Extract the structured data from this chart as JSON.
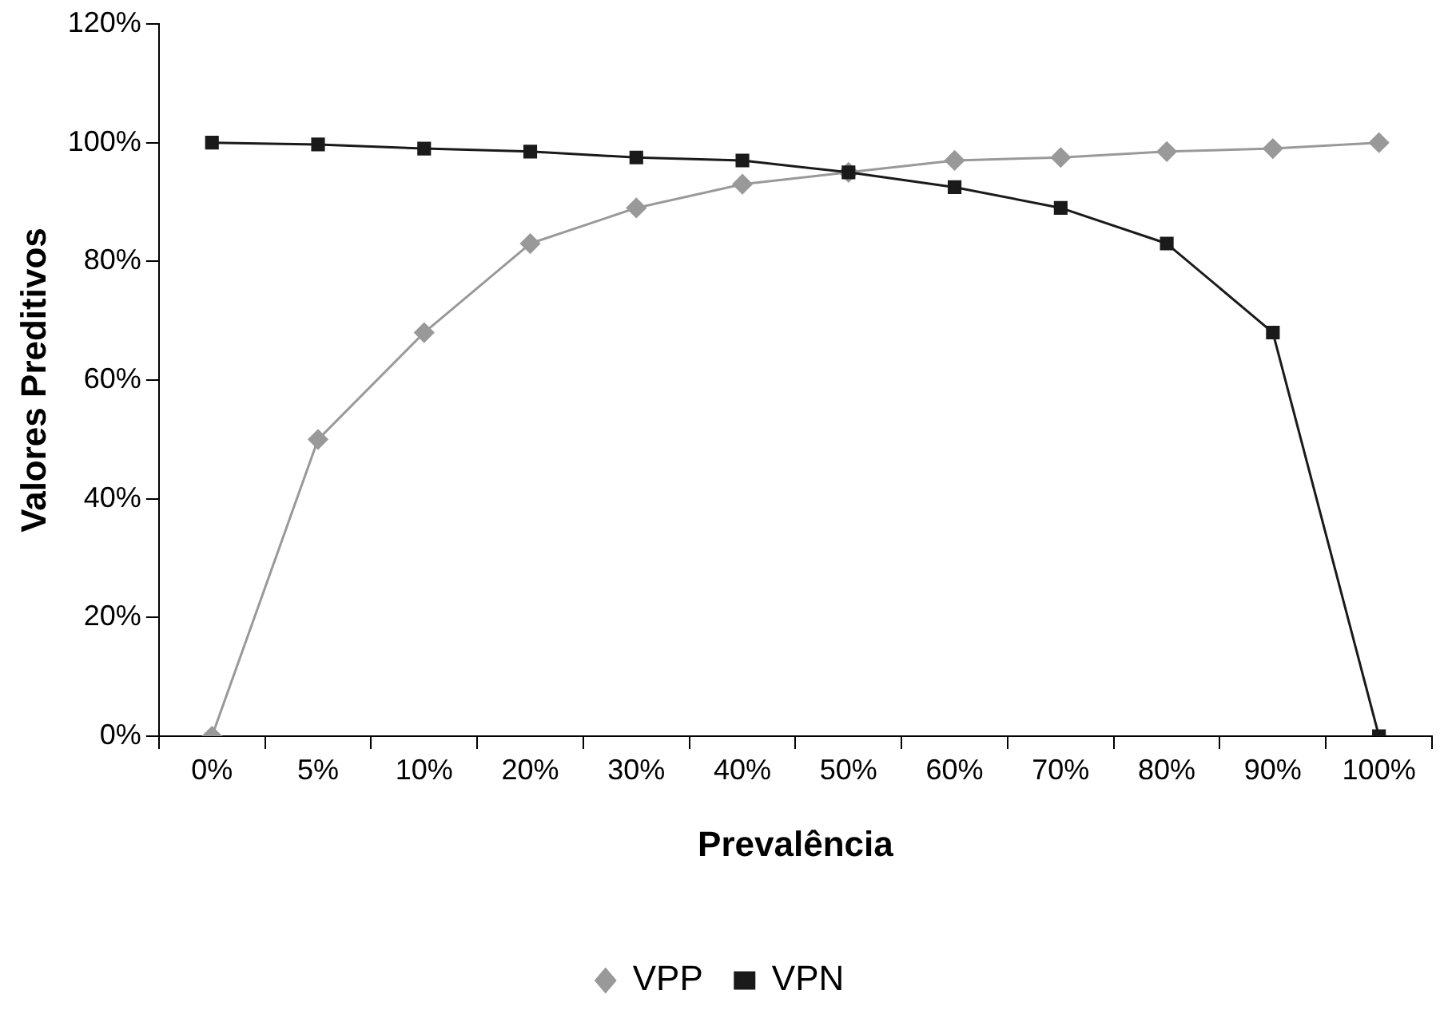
{
  "chart_data": {
    "type": "line",
    "xlabel": "Prevalência",
    "ylabel": "Valores Preditivos",
    "categories": [
      "0%",
      "5%",
      "10%",
      "20%",
      "30%",
      "40%",
      "50%",
      "60%",
      "70%",
      "80%",
      "90%",
      "100%"
    ],
    "series": [
      {
        "name": "VPP",
        "color": "#999999",
        "marker": "diamond",
        "values": [
          0,
          50,
          68,
          83,
          89,
          93,
          95,
          97,
          97.5,
          98.5,
          99,
          100
        ]
      },
      {
        "name": "VPN",
        "color": "#1a1a1a",
        "marker": "square",
        "values": [
          100,
          99.7,
          99,
          98.5,
          97.5,
          97,
          95,
          92.5,
          89,
          83,
          68,
          0
        ]
      }
    ],
    "ylim": [
      0,
      120
    ],
    "yticks": [
      {
        "value": 0,
        "label": "0%"
      },
      {
        "value": 20,
        "label": "20%"
      },
      {
        "value": 40,
        "label": "40%"
      },
      {
        "value": 60,
        "label": "60%"
      },
      {
        "value": 80,
        "label": "80%"
      },
      {
        "value": 100,
        "label": "100%"
      },
      {
        "value": 120,
        "label": "120%"
      }
    ],
    "grid": false,
    "legend": "bottom",
    "line_style": "solid"
  }
}
